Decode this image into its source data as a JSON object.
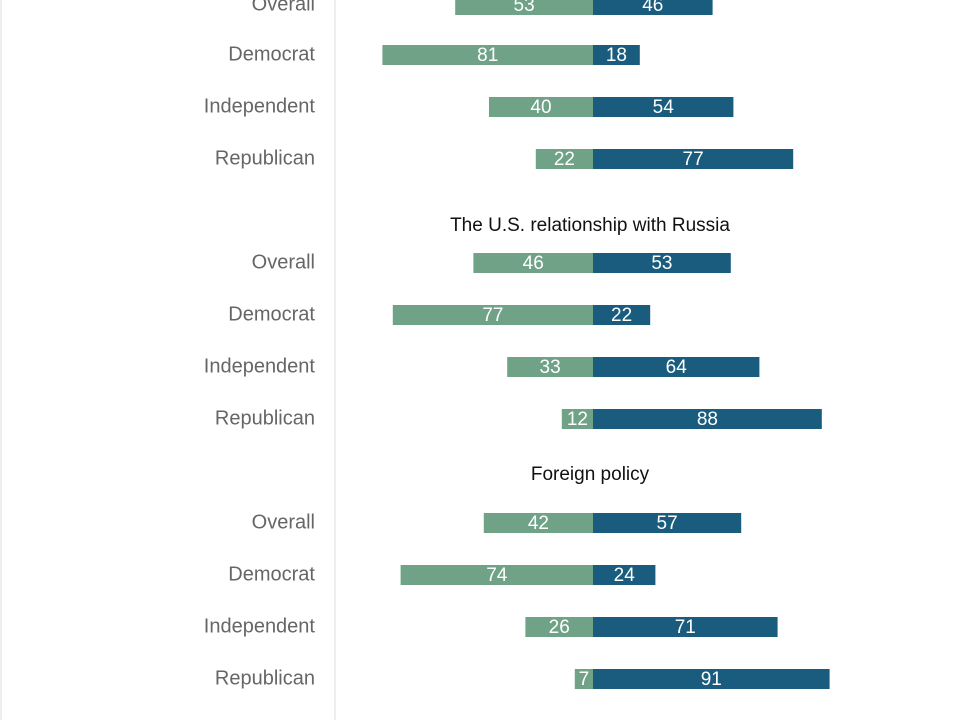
{
  "chart_data": {
    "type": "bar",
    "orientation": "horizontal-diverging",
    "colors": {
      "left": "#6fa287",
      "right": "#1a5c7e"
    },
    "groups": [
      {
        "title": "",
        "rows": [
          {
            "label": "Overall",
            "left": 53,
            "right": 46
          },
          {
            "label": "Democrat",
            "left": 81,
            "right": 18
          },
          {
            "label": "Independent",
            "left": 40,
            "right": 54
          },
          {
            "label": "Republican",
            "left": 22,
            "right": 77
          }
        ]
      },
      {
        "title": "The U.S. relationship with Russia",
        "rows": [
          {
            "label": "Overall",
            "left": 46,
            "right": 53
          },
          {
            "label": "Democrat",
            "left": 77,
            "right": 22
          },
          {
            "label": "Independent",
            "left": 33,
            "right": 64
          },
          {
            "label": "Republican",
            "left": 12,
            "right": 88
          }
        ]
      },
      {
        "title": "Foreign policy",
        "rows": [
          {
            "label": "Overall",
            "left": 42,
            "right": 57
          },
          {
            "label": "Democrat",
            "left": 74,
            "right": 24
          },
          {
            "label": "Independent",
            "left": 26,
            "right": 71
          },
          {
            "label": "Republican",
            "left": 7,
            "right": 91
          }
        ]
      }
    ]
  }
}
